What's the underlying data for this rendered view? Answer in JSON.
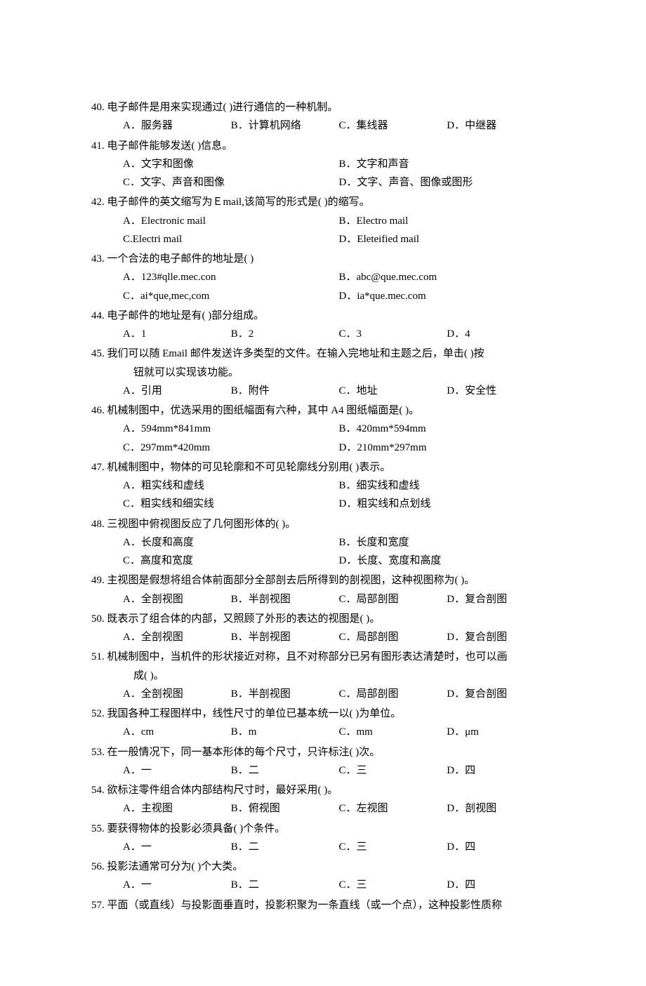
{
  "questions": [
    {
      "num": "40.",
      "stem": "电子邮件是用来实现通过(   )进行通信的一种机制。",
      "layout": "4",
      "opts": [
        {
          "label": "A．",
          "text": "服务器"
        },
        {
          "label": "B．",
          "text": "计算机网络"
        },
        {
          "label": "C．",
          "text": "集线器"
        },
        {
          "label": "D．",
          "text": "中继器"
        }
      ]
    },
    {
      "num": "41.",
      "stem": "电子邮件能够发送(   )信息。",
      "layout": "2x2",
      "opts": [
        {
          "label": "A．",
          "text": "文字和图像"
        },
        {
          "label": "B．",
          "text": "文字和声音"
        },
        {
          "label": "C．",
          "text": "文字、声音和图像"
        },
        {
          "label": "D．",
          "text": "文字、声音、图像或图形"
        }
      ]
    },
    {
      "num": "42.",
      "stem": "电子邮件的英文缩写为Ｅmail,该简写的形式是(   )的缩写。",
      "layout": "2x2",
      "opts": [
        {
          "label": "A．",
          "text": "Electronic mail"
        },
        {
          "label": "B．",
          "text": "Electro mail"
        },
        {
          "label": "C.",
          "text": "Electri mail"
        },
        {
          "label": "D．",
          "text": "Eleteified mail"
        }
      ]
    },
    {
      "num": "43.",
      "stem": "一个合法的电子邮件的地址是(    )",
      "layout": "2x2",
      "opts": [
        {
          "label": "A．",
          "text": "123#qlle.mec.con"
        },
        {
          "label": "B．",
          "text": "abc@que.mec.com"
        },
        {
          "label": "C．",
          "text": "ai*que,mec,com"
        },
        {
          "label": "D．",
          "text": "ia*que.mec.com"
        }
      ]
    },
    {
      "num": "44.",
      "stem": "电子邮件的地址是有(   )部分组成。",
      "layout": "4",
      "opts": [
        {
          "label": "A．",
          "text": "1"
        },
        {
          "label": "B．",
          "text": "2"
        },
        {
          "label": "C．",
          "text": "3"
        },
        {
          "label": "D．",
          "text": "4"
        }
      ]
    },
    {
      "num": "45.",
      "stem": "我们可以随 Email 邮件发送许多类型的文件。在输入完地址和主题之后，单击(   )按",
      "cont": "钮就可以实现该功能。",
      "layout": "4",
      "opts": [
        {
          "label": "A．",
          "text": "引用"
        },
        {
          "label": "B．",
          "text": "附件"
        },
        {
          "label": "C．",
          "text": "地址"
        },
        {
          "label": "D．",
          "text": "安全性"
        }
      ]
    },
    {
      "num": "46.",
      "stem": "机械制图中，优选采用的图纸幅面有六种，其中 A4 图纸幅面是(   )。",
      "layout": "2x2",
      "opts": [
        {
          "label": "A．",
          "text": "594mm*841mm"
        },
        {
          "label": "B．",
          "text": "420mm*594mm"
        },
        {
          "label": "C．",
          "text": "297mm*420mm"
        },
        {
          "label": "D．",
          "text": "210mm*297mm"
        }
      ]
    },
    {
      "num": "47.",
      "stem": "机械制图中，物体的可见轮廓和不可见轮廓线分别用(   )表示。",
      "layout": "2x2",
      "opts": [
        {
          "label": "A．",
          "text": "粗实线和虚线"
        },
        {
          "label": "B．",
          "text": "细实线和虚线"
        },
        {
          "label": "C．",
          "text": "粗实线和细实线"
        },
        {
          "label": "D．",
          "text": "粗实线和点划线"
        }
      ]
    },
    {
      "num": "48.",
      "stem": "三视图中俯视图反应了几何图形体的(   )。",
      "layout": "2x2",
      "opts": [
        {
          "label": "A．",
          "text": "长度和高度"
        },
        {
          "label": "B．",
          "text": "长度和宽度"
        },
        {
          "label": "C．",
          "text": "高度和宽度"
        },
        {
          "label": "D．",
          "text": "长度、宽度和高度"
        }
      ]
    },
    {
      "num": "49.",
      "stem": "主视图是假想将组合体前面部分全部剖去后所得到的剖视图，这种视图称为(   )。",
      "layout": "4",
      "opts": [
        {
          "label": "A．",
          "text": "全剖视图"
        },
        {
          "label": "B．",
          "text": "半剖视图"
        },
        {
          "label": "C．",
          "text": "局部剖图"
        },
        {
          "label": "D．",
          "text": "复合剖图"
        }
      ]
    },
    {
      "num": "50.",
      "stem": "既表示了组合体的内部，又照顾了外形的表达的视图是(   )。",
      "layout": "4",
      "opts": [
        {
          "label": "A．",
          "text": "全剖视图"
        },
        {
          "label": "B．",
          "text": "半剖视图"
        },
        {
          "label": "C．",
          "text": "局部剖图"
        },
        {
          "label": "D．",
          "text": "复合剖图"
        }
      ]
    },
    {
      "num": "51.",
      "stem": "机械制图中，当机件的形状接近对称，且不对称部分已另有图形表达清楚时，也可以画",
      "cont": "成(   )。",
      "layout": "4",
      "opts": [
        {
          "label": "A．",
          "text": "全剖视图"
        },
        {
          "label": "B．",
          "text": "半剖视图"
        },
        {
          "label": "C．",
          "text": "局部剖图"
        },
        {
          "label": "D．",
          "text": "复合剖图"
        }
      ]
    },
    {
      "num": "52.",
      "stem": "我国各种工程图样中，线性尺寸的单位已基本统一以(   )为单位。",
      "layout": "4",
      "opts": [
        {
          "label": "A．",
          "text": "cm"
        },
        {
          "label": "B．",
          "text": "m"
        },
        {
          "label": "C．",
          "text": "mm"
        },
        {
          "label": "D．",
          "text": "μm"
        }
      ]
    },
    {
      "num": "53.",
      "stem": "在一般情况下，同一基本形体的每个尺寸，只许标注(   )次。",
      "layout": "4",
      "opts": [
        {
          "label": "A．",
          "text": "一"
        },
        {
          "label": "B．",
          "text": "二"
        },
        {
          "label": "C．",
          "text": "三"
        },
        {
          "label": "D．",
          "text": "四"
        }
      ]
    },
    {
      "num": "54.",
      "stem": "欲标注零件组合体内部结构尺寸时，最好采用(   )。",
      "layout": "4",
      "opts": [
        {
          "label": "A．",
          "text": "主视图"
        },
        {
          "label": "B．",
          "text": "俯视图"
        },
        {
          "label": "C．",
          "text": "左视图"
        },
        {
          "label": "D．",
          "text": "剖视图"
        }
      ]
    },
    {
      "num": "55.",
      "stem": "要获得物体的投影必须具备(   )个条件。",
      "layout": "4",
      "opts": [
        {
          "label": "A．",
          "text": "一"
        },
        {
          "label": "B．",
          "text": "二"
        },
        {
          "label": "C．",
          "text": "三"
        },
        {
          "label": "D．",
          "text": "四"
        }
      ]
    },
    {
      "num": "56.",
      "stem": "投影法通常可分为(   )个大类。",
      "layout": "4",
      "opts": [
        {
          "label": "A．",
          "text": "一"
        },
        {
          "label": "B．",
          "text": "二"
        },
        {
          "label": "C．",
          "text": "三"
        },
        {
          "label": "D．",
          "text": "四"
        }
      ]
    },
    {
      "num": "57.",
      "stem": "平面（或直线）与投影面垂直时，投影积聚为一条直线（或一个点），这种投影性质称",
      "layout": "none",
      "opts": []
    }
  ]
}
